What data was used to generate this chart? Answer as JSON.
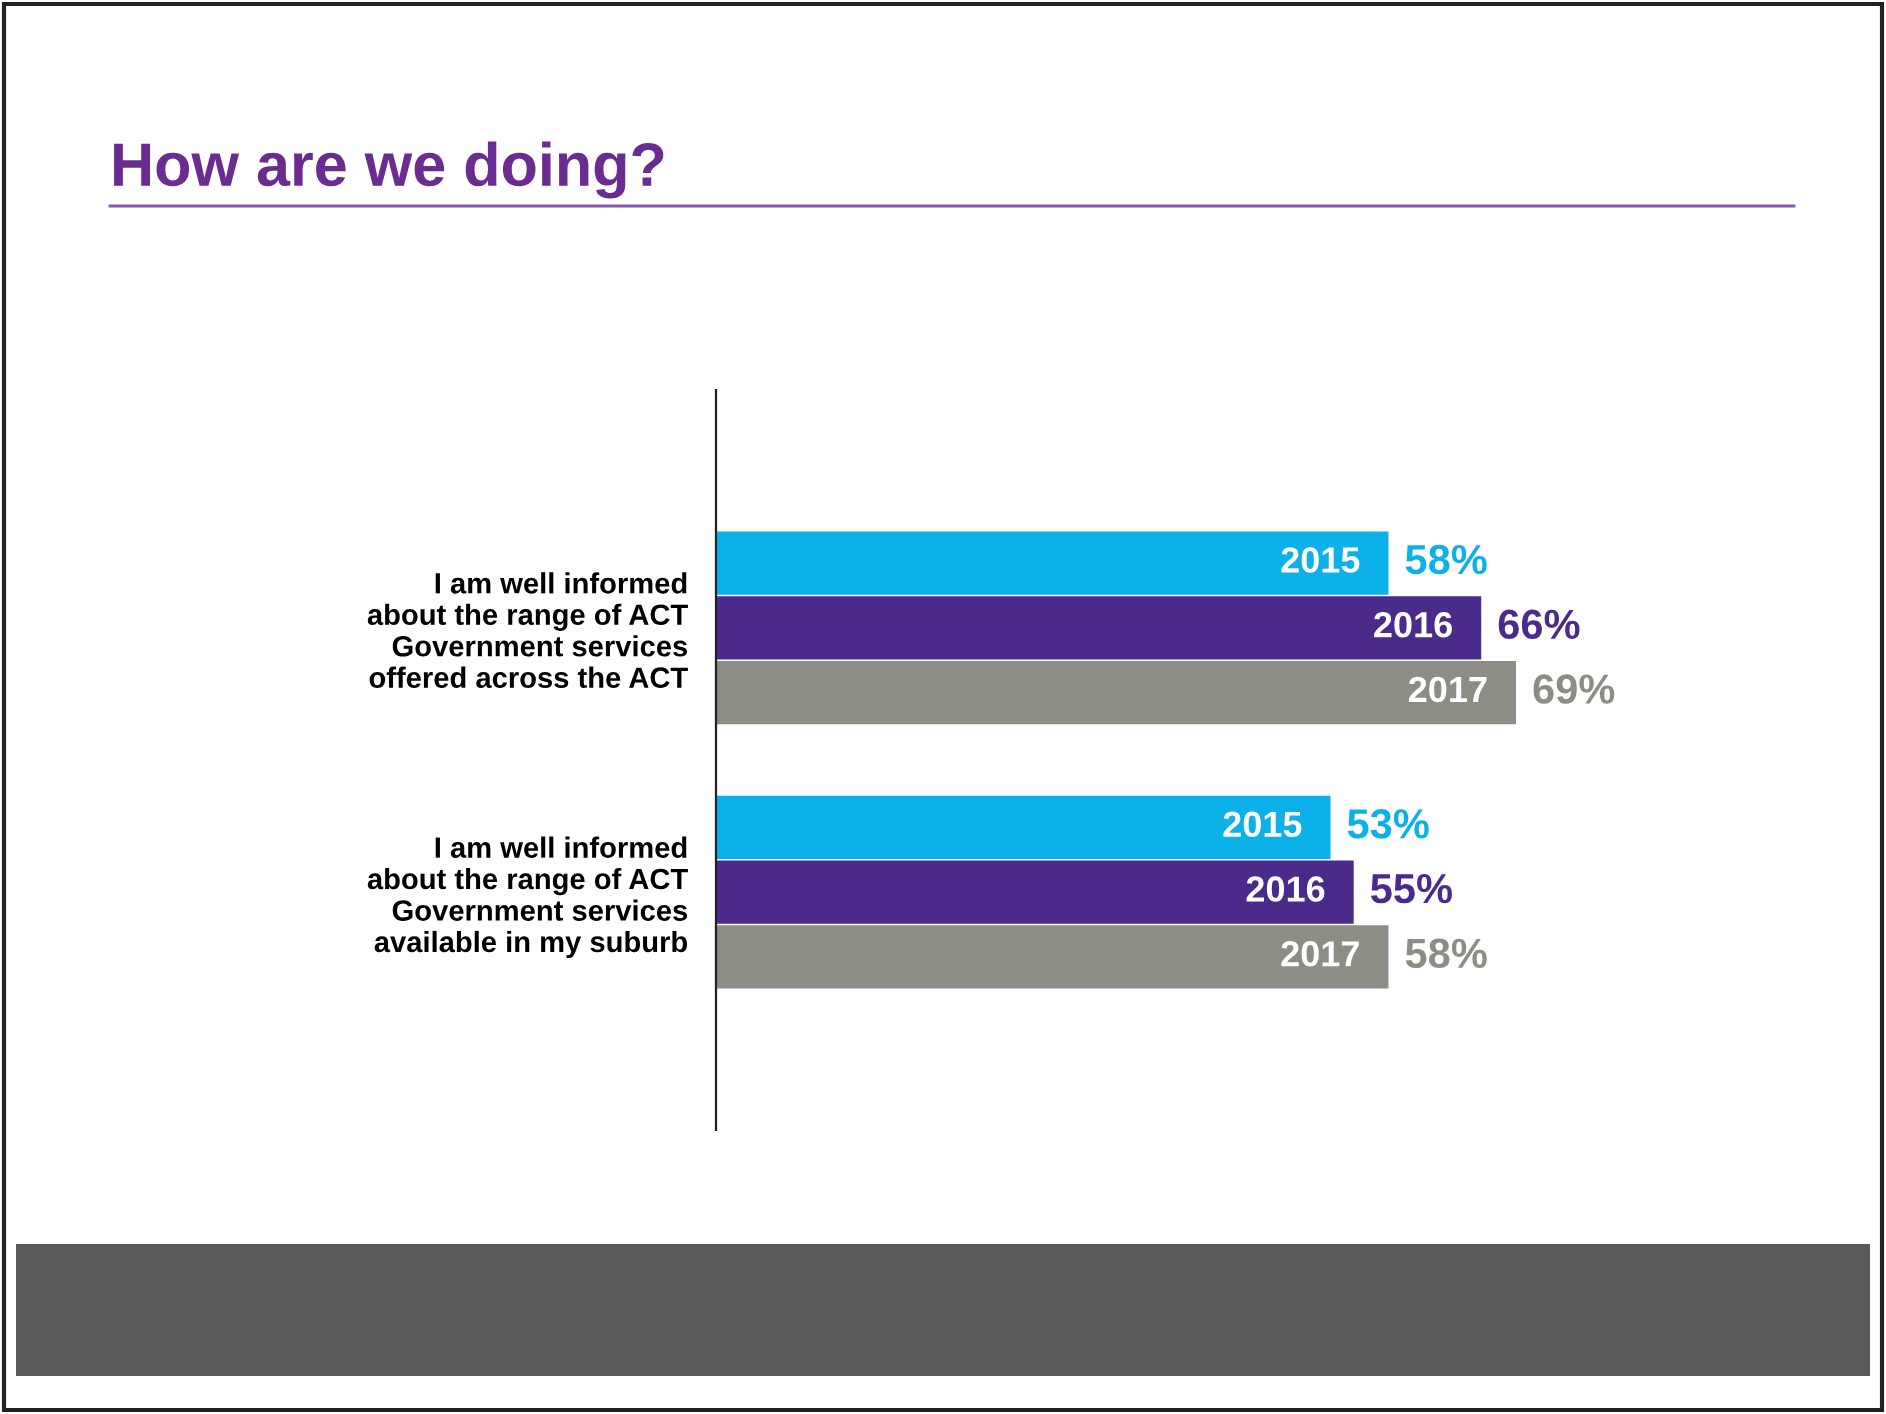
{
  "chart_data": {
    "type": "bar",
    "orientation": "horizontal",
    "title": "How are we doing?",
    "categories": [
      "I am well informed\nabout the range of ACT\nGovernment services\noffered across the ACT",
      "I am well informed\nabout the range of ACT\nGovernment services\navailable in my suburb"
    ],
    "series": [
      {
        "name": "2015",
        "color": "#0cb1e9",
        "values": [
          58,
          53
        ],
        "value_labels": [
          "58%",
          "53%"
        ]
      },
      {
        "name": "2016",
        "color": "#4a2a8a",
        "values": [
          66,
          55
        ],
        "value_labels": [
          "66%",
          "55%"
        ]
      },
      {
        "name": "2017",
        "color": "#8e8d85",
        "values": [
          69,
          58
        ],
        "value_labels": [
          "69%",
          "58%"
        ]
      }
    ]
  }
}
